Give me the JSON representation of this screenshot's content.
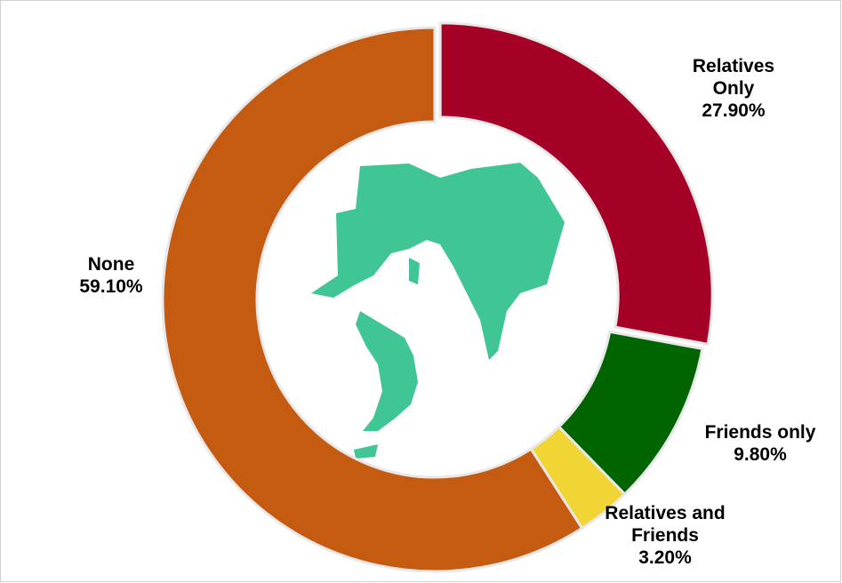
{
  "chart_data": {
    "type": "donut",
    "categories": [
      "Relatives Only",
      "Friends only",
      "Relatives and Friends",
      "None"
    ],
    "values": [
      27.9,
      9.8,
      3.2,
      59.1
    ],
    "value_labels": [
      "27.90%",
      "9.80%",
      "3.20%",
      "59.10%"
    ],
    "colors": [
      "#a50026",
      "#006400",
      "#f0d535",
      "#c55a11"
    ]
  }
}
